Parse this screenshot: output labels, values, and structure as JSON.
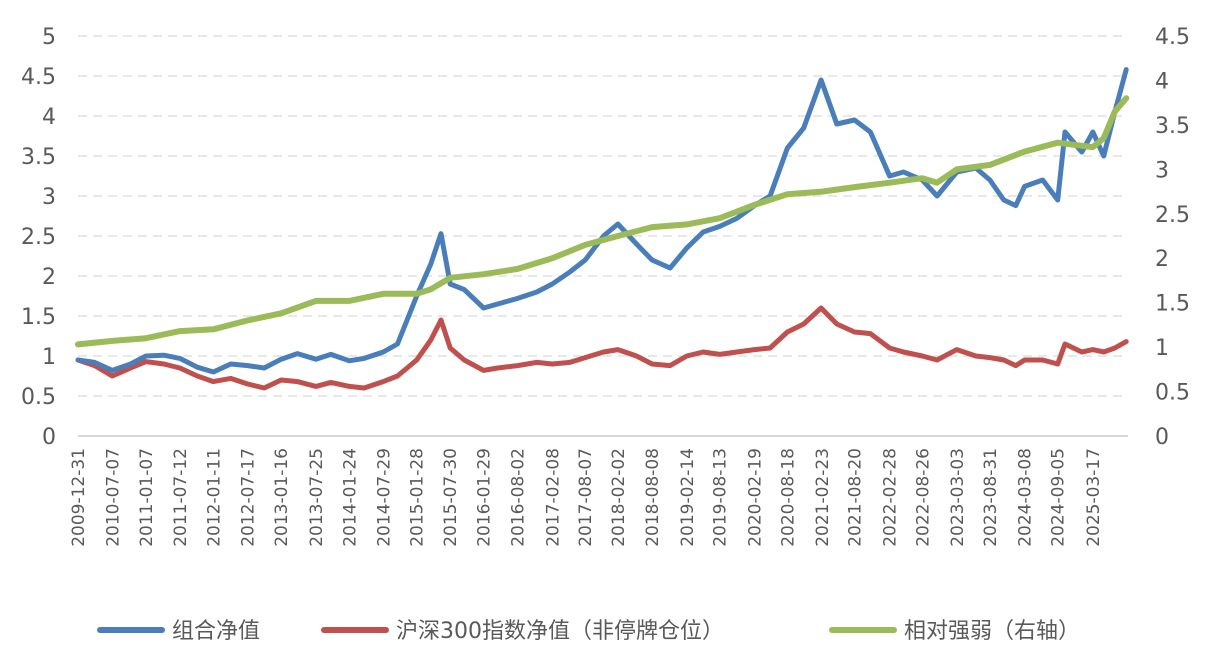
{
  "chart_data": {
    "type": "line",
    "title": "",
    "xlabel": "",
    "ylabel": "",
    "y_left": {
      "lim": [
        0,
        5
      ],
      "ticks": [
        "0",
        "0.5",
        "1",
        "1.5",
        "2",
        "2.5",
        "3",
        "3.5",
        "4",
        "4.5",
        "5"
      ]
    },
    "y_right": {
      "lim": [
        0,
        4.5
      ],
      "ticks": [
        "0",
        "0.5",
        "1",
        "1.5",
        "2",
        "2.5",
        "3",
        "3.5",
        "4",
        "4.5"
      ]
    },
    "x_tick_labels": [
      "2009-12-31",
      "2010-07-07",
      "2011-01-07",
      "2011-07-12",
      "2012-01-11",
      "2012-07-17",
      "2013-01-16",
      "2013-07-25",
      "2014-01-24",
      "2014-07-29",
      "2015-01-28",
      "2015-07-30",
      "2016-01-29",
      "2016-08-02",
      "2017-02-08",
      "2017-08-07",
      "2018-02-02",
      "2018-08-08",
      "2019-02-14",
      "2019-08-13",
      "2020-02-19",
      "2020-08-18",
      "2021-02-23",
      "2021-08-20",
      "2022-02-28",
      "2022-08-26",
      "2023-03-03",
      "2023-08-31",
      "2024-03-08",
      "2024-09-05",
      "2025-03-17"
    ],
    "grid": true,
    "legend_position": "bottom",
    "series": [
      {
        "name": "组合净值",
        "axis": "left",
        "color": "#4a7ebb",
        "points": [
          [
            "2009-12-31",
            0.95
          ],
          [
            "2010-04-01",
            0.92
          ],
          [
            "2010-07-07",
            0.82
          ],
          [
            "2010-10-15",
            0.9
          ],
          [
            "2011-01-07",
            1.0
          ],
          [
            "2011-04-15",
            1.01
          ],
          [
            "2011-07-12",
            0.97
          ],
          [
            "2011-10-15",
            0.86
          ],
          [
            "2012-01-11",
            0.8
          ],
          [
            "2012-04-15",
            0.9
          ],
          [
            "2012-07-17",
            0.88
          ],
          [
            "2012-10-15",
            0.85
          ],
          [
            "2013-01-16",
            0.96
          ],
          [
            "2013-04-15",
            1.03
          ],
          [
            "2013-07-25",
            0.96
          ],
          [
            "2013-10-15",
            1.02
          ],
          [
            "2014-01-24",
            0.94
          ],
          [
            "2014-04-15",
            0.97
          ],
          [
            "2014-07-29",
            1.05
          ],
          [
            "2014-10-15",
            1.15
          ],
          [
            "2015-01-28",
            1.75
          ],
          [
            "2015-04-15",
            2.15
          ],
          [
            "2015-06-10",
            2.53
          ],
          [
            "2015-07-30",
            1.9
          ],
          [
            "2015-10-15",
            1.83
          ],
          [
            "2016-01-29",
            1.6
          ],
          [
            "2016-04-15",
            1.65
          ],
          [
            "2016-08-02",
            1.72
          ],
          [
            "2016-11-15",
            1.8
          ],
          [
            "2017-02-08",
            1.9
          ],
          [
            "2017-05-15",
            2.05
          ],
          [
            "2017-08-07",
            2.2
          ],
          [
            "2017-11-15",
            2.5
          ],
          [
            "2018-02-02",
            2.65
          ],
          [
            "2018-05-15",
            2.4
          ],
          [
            "2018-08-08",
            2.2
          ],
          [
            "2018-11-15",
            2.1
          ],
          [
            "2019-02-14",
            2.35
          ],
          [
            "2019-05-15",
            2.55
          ],
          [
            "2019-08-13",
            2.62
          ],
          [
            "2019-11-15",
            2.72
          ],
          [
            "2020-02-19",
            2.88
          ],
          [
            "2020-05-15",
            3.0
          ],
          [
            "2020-08-18",
            3.6
          ],
          [
            "2020-11-15",
            3.85
          ],
          [
            "2021-02-18",
            4.45
          ],
          [
            "2021-05-15",
            3.9
          ],
          [
            "2021-08-20",
            3.95
          ],
          [
            "2021-11-15",
            3.8
          ],
          [
            "2022-02-28",
            3.25
          ],
          [
            "2022-05-15",
            3.3
          ],
          [
            "2022-08-26",
            3.2
          ],
          [
            "2022-11-15",
            3.0
          ],
          [
            "2023-03-03",
            3.3
          ],
          [
            "2023-06-15",
            3.35
          ],
          [
            "2023-08-31",
            3.2
          ],
          [
            "2023-11-15",
            2.95
          ],
          [
            "2024-01-20",
            2.88
          ],
          [
            "2024-03-08",
            3.12
          ],
          [
            "2024-06-15",
            3.2
          ],
          [
            "2024-09-05",
            2.95
          ],
          [
            "2024-10-15",
            3.8
          ],
          [
            "2025-01-15",
            3.55
          ],
          [
            "2025-03-17",
            3.8
          ],
          [
            "2025-05-15",
            3.5
          ],
          [
            "2025-07-15",
            4.05
          ],
          [
            "2025-09-15",
            4.58
          ]
        ]
      },
      {
        "name": "沪深300指数净值（非停牌仓位）",
        "axis": "left",
        "color": "#c0504d",
        "points": [
          [
            "2009-12-31",
            0.95
          ],
          [
            "2010-04-01",
            0.88
          ],
          [
            "2010-07-07",
            0.75
          ],
          [
            "2010-10-15",
            0.85
          ],
          [
            "2011-01-07",
            0.93
          ],
          [
            "2011-04-15",
            0.9
          ],
          [
            "2011-07-12",
            0.85
          ],
          [
            "2011-10-15",
            0.75
          ],
          [
            "2012-01-11",
            0.68
          ],
          [
            "2012-04-15",
            0.72
          ],
          [
            "2012-07-17",
            0.65
          ],
          [
            "2012-10-15",
            0.6
          ],
          [
            "2013-01-16",
            0.7
          ],
          [
            "2013-04-15",
            0.68
          ],
          [
            "2013-07-25",
            0.62
          ],
          [
            "2013-10-15",
            0.67
          ],
          [
            "2014-01-24",
            0.62
          ],
          [
            "2014-04-15",
            0.6
          ],
          [
            "2014-07-29",
            0.68
          ],
          [
            "2014-10-15",
            0.75
          ],
          [
            "2015-01-28",
            0.95
          ],
          [
            "2015-04-15",
            1.2
          ],
          [
            "2015-06-10",
            1.45
          ],
          [
            "2015-07-30",
            1.1
          ],
          [
            "2015-10-15",
            0.95
          ],
          [
            "2016-01-29",
            0.82
          ],
          [
            "2016-04-15",
            0.85
          ],
          [
            "2016-08-02",
            0.88
          ],
          [
            "2016-11-15",
            0.92
          ],
          [
            "2017-02-08",
            0.9
          ],
          [
            "2017-05-15",
            0.92
          ],
          [
            "2017-08-07",
            0.98
          ],
          [
            "2017-11-15",
            1.05
          ],
          [
            "2018-02-02",
            1.08
          ],
          [
            "2018-05-15",
            1.0
          ],
          [
            "2018-08-08",
            0.9
          ],
          [
            "2018-11-15",
            0.88
          ],
          [
            "2019-02-14",
            1.0
          ],
          [
            "2019-05-15",
            1.05
          ],
          [
            "2019-08-13",
            1.02
          ],
          [
            "2019-11-15",
            1.05
          ],
          [
            "2020-02-19",
            1.08
          ],
          [
            "2020-05-15",
            1.1
          ],
          [
            "2020-08-18",
            1.3
          ],
          [
            "2020-11-15",
            1.4
          ],
          [
            "2021-02-18",
            1.6
          ],
          [
            "2021-05-15",
            1.4
          ],
          [
            "2021-08-20",
            1.3
          ],
          [
            "2021-11-15",
            1.28
          ],
          [
            "2022-02-28",
            1.1
          ],
          [
            "2022-05-15",
            1.05
          ],
          [
            "2022-08-26",
            1.0
          ],
          [
            "2022-11-15",
            0.95
          ],
          [
            "2023-03-03",
            1.08
          ],
          [
            "2023-06-15",
            1.0
          ],
          [
            "2023-08-31",
            0.98
          ],
          [
            "2023-11-15",
            0.95
          ],
          [
            "2024-01-20",
            0.88
          ],
          [
            "2024-03-08",
            0.95
          ],
          [
            "2024-06-15",
            0.95
          ],
          [
            "2024-09-05",
            0.9
          ],
          [
            "2024-10-15",
            1.15
          ],
          [
            "2025-01-15",
            1.05
          ],
          [
            "2025-03-17",
            1.08
          ],
          [
            "2025-05-15",
            1.05
          ],
          [
            "2025-07-15",
            1.1
          ],
          [
            "2025-09-15",
            1.18
          ]
        ]
      },
      {
        "name": "相对强弱（右轴）",
        "axis": "right",
        "color": "#9bbb59",
        "points": [
          [
            "2009-12-31",
            1.03
          ],
          [
            "2010-07-07",
            1.07
          ],
          [
            "2011-01-07",
            1.1
          ],
          [
            "2011-07-12",
            1.18
          ],
          [
            "2012-01-11",
            1.2
          ],
          [
            "2012-07-17",
            1.3
          ],
          [
            "2013-01-16",
            1.38
          ],
          [
            "2013-07-25",
            1.52
          ],
          [
            "2014-01-24",
            1.52
          ],
          [
            "2014-07-29",
            1.6
          ],
          [
            "2015-01-28",
            1.6
          ],
          [
            "2015-04-15",
            1.65
          ],
          [
            "2015-07-30",
            1.78
          ],
          [
            "2016-01-29",
            1.82
          ],
          [
            "2016-08-02",
            1.88
          ],
          [
            "2017-02-08",
            2.0
          ],
          [
            "2017-08-07",
            2.15
          ],
          [
            "2018-02-02",
            2.25
          ],
          [
            "2018-08-08",
            2.35
          ],
          [
            "2019-02-14",
            2.38
          ],
          [
            "2019-08-13",
            2.45
          ],
          [
            "2020-02-19",
            2.6
          ],
          [
            "2020-08-18",
            2.72
          ],
          [
            "2021-02-23",
            2.75
          ],
          [
            "2021-08-20",
            2.8
          ],
          [
            "2022-02-28",
            2.85
          ],
          [
            "2022-08-26",
            2.9
          ],
          [
            "2022-11-15",
            2.85
          ],
          [
            "2023-03-03",
            3.0
          ],
          [
            "2023-08-31",
            3.05
          ],
          [
            "2024-03-08",
            3.2
          ],
          [
            "2024-09-05",
            3.3
          ],
          [
            "2024-11-15",
            3.28
          ],
          [
            "2025-03-17",
            3.25
          ],
          [
            "2025-05-15",
            3.35
          ],
          [
            "2025-07-15",
            3.65
          ],
          [
            "2025-09-15",
            3.8
          ]
        ]
      }
    ]
  }
}
